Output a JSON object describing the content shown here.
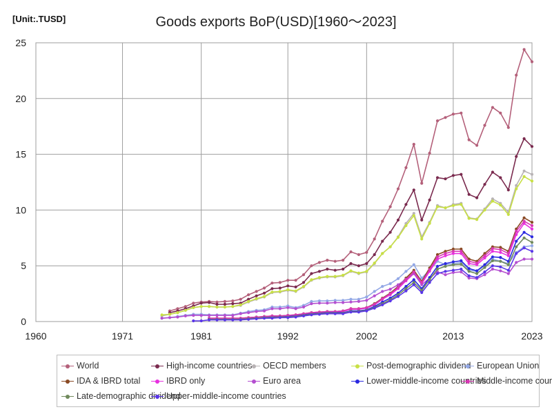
{
  "chart_data": {
    "type": "line",
    "title": "Goods exports BoP(USD)[1960～2023]",
    "unit_label": "[Unit:.TUSD]",
    "xlabel": "",
    "ylabel": "",
    "xlim": [
      1960,
      2023
    ],
    "ylim": [
      0,
      25
    ],
    "x_ticks": [
      1960,
      1971,
      1981,
      1992,
      2002,
      2013,
      2023
    ],
    "y_ticks": [
      0,
      5,
      10,
      15,
      20,
      25
    ],
    "grid": true,
    "legend_position": "bottom",
    "x": [
      1976,
      1977,
      1978,
      1979,
      1980,
      1981,
      1982,
      1983,
      1984,
      1985,
      1986,
      1987,
      1988,
      1989,
      1990,
      1991,
      1992,
      1993,
      1994,
      1995,
      1996,
      1997,
      1998,
      1999,
      2000,
      2001,
      2002,
      2003,
      2004,
      2005,
      2006,
      2007,
      2008,
      2009,
      2010,
      2011,
      2012,
      2013,
      2014,
      2015,
      2016,
      2017,
      2018,
      2019,
      2020,
      2021,
      2022,
      2023
    ],
    "series": [
      {
        "name": "World",
        "color": "#b4607a",
        "values": [
          null,
          0.95,
          1.15,
          1.35,
          1.65,
          1.75,
          1.8,
          1.75,
          1.8,
          1.85,
          2.0,
          2.4,
          2.7,
          3.0,
          3.45,
          3.5,
          3.7,
          3.7,
          4.2,
          5.0,
          5.3,
          5.5,
          5.4,
          5.5,
          6.25,
          6.0,
          6.2,
          7.4,
          9.0,
          10.3,
          11.9,
          13.8,
          15.9,
          12.4,
          15.1,
          18.0,
          18.3,
          18.6,
          18.7,
          16.3,
          15.8,
          17.6,
          19.2,
          18.7,
          17.4,
          22.1,
          24.4,
          23.3
        ]
      },
      {
        "name": "High-income countries",
        "color": "#7a2a4e",
        "values": [
          null,
          0.8,
          0.95,
          1.15,
          1.4,
          1.65,
          1.7,
          1.55,
          1.55,
          1.6,
          1.65,
          2.0,
          2.3,
          2.55,
          2.95,
          3.0,
          3.2,
          3.1,
          3.5,
          4.3,
          4.5,
          4.7,
          4.6,
          4.7,
          5.2,
          5.0,
          5.2,
          6.0,
          7.2,
          8.0,
          9.1,
          10.5,
          11.8,
          9.1,
          10.9,
          12.9,
          12.8,
          13.1,
          13.2,
          11.4,
          11.1,
          12.3,
          13.4,
          12.9,
          11.8,
          14.8,
          16.4,
          15.7
        ]
      },
      {
        "name": "OECD members",
        "color": "#b8b3b5",
        "values": [
          0.5,
          0.65,
          0.8,
          1.0,
          1.25,
          1.35,
          1.35,
          1.3,
          1.3,
          1.35,
          1.45,
          1.75,
          2.0,
          2.2,
          2.6,
          2.65,
          2.8,
          2.7,
          3.1,
          3.7,
          3.9,
          4.0,
          4.0,
          4.1,
          4.5,
          4.3,
          4.45,
          5.2,
          6.1,
          6.7,
          7.6,
          8.8,
          9.7,
          7.6,
          8.9,
          10.4,
          10.2,
          10.5,
          10.6,
          9.3,
          9.2,
          10.1,
          11.0,
          10.6,
          9.8,
          12.2,
          13.5,
          13.2
        ]
      },
      {
        "name": "Post-demographic dividend",
        "color": "#c8e045",
        "values": [
          0.6,
          0.65,
          0.8,
          1.0,
          1.25,
          1.35,
          1.35,
          1.3,
          1.3,
          1.35,
          1.5,
          1.8,
          2.05,
          2.25,
          2.65,
          2.7,
          2.85,
          2.75,
          3.15,
          3.75,
          3.95,
          4.05,
          4.05,
          4.15,
          4.55,
          4.35,
          4.5,
          5.25,
          6.1,
          6.7,
          7.55,
          8.6,
          9.5,
          7.4,
          8.8,
          10.3,
          10.2,
          10.4,
          10.5,
          9.25,
          9.15,
          10.0,
          10.8,
          10.45,
          9.6,
          11.9,
          13.0,
          12.6
        ]
      },
      {
        "name": "European Union",
        "color": "#93a8e6",
        "values": [
          0.3,
          0.35,
          0.45,
          0.55,
          0.65,
          0.65,
          0.6,
          0.6,
          0.6,
          0.6,
          0.75,
          0.9,
          1.0,
          1.05,
          1.3,
          1.3,
          1.4,
          1.25,
          1.45,
          1.8,
          1.85,
          1.85,
          1.9,
          1.9,
          2.0,
          2.0,
          2.2,
          2.7,
          3.15,
          3.4,
          3.85,
          4.5,
          5.1,
          3.9,
          4.6,
          5.4,
          5.1,
          5.2,
          5.3,
          4.6,
          4.5,
          5.0,
          5.6,
          5.4,
          5.2,
          6.2,
          6.7,
          6.8
        ]
      },
      {
        "name": "IDA & IBRD total",
        "color": "#8a4a24",
        "values": [
          null,
          null,
          null,
          null,
          null,
          null,
          0.3,
          0.3,
          0.3,
          0.3,
          0.3,
          0.35,
          0.4,
          0.45,
          0.5,
          0.5,
          0.55,
          0.6,
          0.7,
          0.8,
          0.85,
          0.9,
          0.9,
          0.95,
          1.15,
          1.15,
          1.25,
          1.6,
          2.1,
          2.55,
          3.15,
          3.9,
          4.6,
          3.6,
          4.8,
          6.0,
          6.3,
          6.5,
          6.5,
          5.6,
          5.4,
          6.1,
          6.7,
          6.65,
          6.3,
          8.3,
          9.3,
          8.9
        ]
      },
      {
        "name": "IBRD only",
        "color": "#e830e0",
        "values": [
          null,
          null,
          null,
          null,
          null,
          null,
          0.28,
          0.28,
          0.28,
          0.28,
          0.28,
          0.33,
          0.38,
          0.42,
          0.48,
          0.48,
          0.52,
          0.56,
          0.65,
          0.75,
          0.8,
          0.85,
          0.85,
          0.9,
          1.1,
          1.1,
          1.2,
          1.5,
          2.0,
          2.4,
          2.95,
          3.65,
          4.3,
          3.4,
          4.5,
          5.6,
          5.9,
          6.1,
          6.1,
          5.2,
          5.1,
          5.7,
          6.3,
          6.2,
          5.9,
          7.8,
          8.8,
          8.3
        ]
      },
      {
        "name": "Euro area",
        "color": "#b44fd0",
        "values": [
          0.3,
          0.35,
          0.4,
          0.5,
          0.55,
          0.55,
          0.55,
          0.55,
          0.55,
          0.55,
          0.7,
          0.8,
          0.9,
          0.95,
          1.15,
          1.15,
          1.25,
          1.15,
          1.3,
          1.6,
          1.65,
          1.65,
          1.7,
          1.7,
          1.75,
          1.8,
          1.9,
          2.3,
          2.7,
          2.9,
          3.3,
          3.8,
          4.3,
          3.3,
          3.9,
          4.45,
          4.2,
          4.4,
          4.45,
          3.9,
          3.85,
          4.2,
          4.7,
          4.55,
          4.3,
          5.3,
          5.6,
          5.6
        ]
      },
      {
        "name": "Lower-middle-income countries",
        "color": "#2a28e0",
        "values": [
          null,
          null,
          null,
          null,
          null,
          null,
          0.25,
          0.25,
          0.25,
          0.25,
          0.25,
          0.3,
          0.35,
          0.4,
          0.4,
          0.45,
          0.45,
          0.5,
          0.6,
          0.7,
          0.75,
          0.8,
          0.8,
          0.8,
          0.95,
          0.95,
          1.05,
          1.35,
          1.75,
          2.1,
          2.55,
          3.15,
          3.75,
          2.95,
          3.95,
          4.95,
          5.2,
          5.35,
          5.45,
          4.75,
          4.55,
          5.1,
          5.8,
          5.75,
          5.4,
          7.2,
          8.0,
          7.6
        ]
      },
      {
        "name": "Middle-income countries",
        "color": "#d838b4",
        "values": [
          null,
          null,
          null,
          null,
          null,
          null,
          0.3,
          0.3,
          0.3,
          0.3,
          0.3,
          0.35,
          0.4,
          0.45,
          0.5,
          0.5,
          0.55,
          0.6,
          0.7,
          0.8,
          0.85,
          0.9,
          0.9,
          0.95,
          1.15,
          1.15,
          1.25,
          1.55,
          2.05,
          2.5,
          3.05,
          3.75,
          4.45,
          3.5,
          4.65,
          5.8,
          6.1,
          6.3,
          6.3,
          5.4,
          5.25,
          5.9,
          6.55,
          6.45,
          6.1,
          8.1,
          9.0,
          8.6
        ]
      },
      {
        "name": "Late-demographic dividend",
        "color": "#708a5c",
        "values": [
          null,
          null,
          null,
          null,
          null,
          null,
          0.2,
          0.2,
          0.2,
          0.2,
          0.2,
          0.25,
          0.3,
          0.35,
          0.35,
          0.4,
          0.4,
          0.45,
          0.55,
          0.65,
          0.7,
          0.75,
          0.75,
          0.75,
          0.9,
          0.9,
          1.0,
          1.25,
          1.6,
          1.95,
          2.4,
          2.95,
          3.5,
          2.8,
          3.75,
          4.7,
          4.95,
          5.1,
          5.15,
          4.5,
          4.3,
          4.85,
          5.45,
          5.4,
          5.1,
          6.7,
          7.5,
          7.1
        ]
      },
      {
        "name": "Upper-middle-income countries",
        "color": "#5a36e8",
        "values": [
          null,
          null,
          null,
          null,
          0.06,
          0.06,
          0.15,
          0.15,
          0.15,
          0.15,
          0.15,
          0.2,
          0.25,
          0.3,
          0.3,
          0.35,
          0.35,
          0.4,
          0.5,
          0.6,
          0.65,
          0.7,
          0.7,
          0.7,
          0.85,
          0.85,
          0.95,
          1.2,
          1.5,
          1.85,
          2.25,
          2.75,
          3.3,
          2.6,
          3.5,
          4.3,
          4.5,
          4.6,
          4.7,
          4.1,
          3.95,
          4.45,
          5.0,
          4.9,
          4.6,
          6.1,
          6.6,
          6.3
        ]
      }
    ]
  }
}
